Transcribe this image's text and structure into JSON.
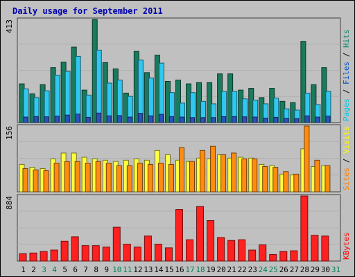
{
  "chart_data": [
    {
      "type": "bar",
      "title": "Daily usage for September 2011",
      "ymax_label": "413",
      "ylim": [
        0,
        413
      ],
      "legend_right": [
        "Pages",
        "Files",
        "Hits"
      ],
      "legend_colors": [
        "#00c8e0",
        "#0050c8",
        "#00806a"
      ],
      "categories": [
        "1",
        "2",
        "3",
        "4",
        "5",
        "6",
        "7",
        "8",
        "9",
        "10",
        "11",
        "12",
        "13",
        "14",
        "15",
        "16",
        "17",
        "18",
        "19",
        "20",
        "21",
        "22",
        "23",
        "24",
        "25",
        "26",
        "27",
        "28",
        "29",
        "30",
        "31"
      ],
      "weekend_days": [
        "3",
        "4",
        "10",
        "11",
        "17",
        "18",
        "24",
        "25",
        "31"
      ],
      "series": [
        {
          "name": "Hits",
          "color": "#1a7a5e",
          "values": [
            155,
            115,
            152,
            220,
            242,
            302,
            130,
            413,
            240,
            215,
            118,
            285,
            200,
            270,
            165,
            170,
            155,
            160,
            160,
            195,
            195,
            130,
            137,
            100,
            137,
            85,
            80,
            325,
            152,
            220,
            0
          ]
        },
        {
          "name": "Files",
          "color": "#30c8f0",
          "values": [
            135,
            100,
            127,
            190,
            205,
            265,
            110,
            290,
            158,
            170,
            105,
            250,
            178,
            238,
            120,
            78,
            120,
            85,
            75,
            125,
            125,
            95,
            90,
            75,
            98,
            55,
            50,
            118,
            72,
            125,
            0
          ]
        },
        {
          "name": "Pages",
          "color": "#2a52be",
          "values": [
            22,
            24,
            23,
            26,
            30,
            34,
            21,
            38,
            27,
            28,
            22,
            37,
            27,
            33,
            24,
            22,
            20,
            20,
            20,
            24,
            24,
            23,
            22,
            18,
            21,
            17,
            16,
            27,
            22,
            26,
            0
          ]
        }
      ]
    },
    {
      "type": "bar",
      "ymax_label": "156",
      "ylim": [
        0,
        156
      ],
      "legend_right": [
        "Sites",
        "Visits"
      ],
      "legend_colors": [
        "#ff8000",
        "#ffff00"
      ],
      "categories": [
        "1",
        "2",
        "3",
        "4",
        "5",
        "6",
        "7",
        "8",
        "9",
        "10",
        "11",
        "12",
        "13",
        "14",
        "15",
        "16",
        "17",
        "18",
        "19",
        "20",
        "21",
        "22",
        "23",
        "24",
        "25",
        "26",
        "27",
        "28",
        "29",
        "30",
        "31"
      ],
      "series": [
        {
          "name": "Visits",
          "color": "#ffff40",
          "values": [
            65,
            58,
            55,
            78,
            92,
            92,
            82,
            78,
            75,
            72,
            75,
            78,
            75,
            98,
            88,
            75,
            72,
            80,
            78,
            88,
            80,
            82,
            80,
            65,
            62,
            42,
            40,
            102,
            60,
            62,
            0
          ]
        },
        {
          "name": "Sites",
          "color": "#ff8c10",
          "values": [
            55,
            52,
            50,
            68,
            72,
            72,
            68,
            72,
            68,
            62,
            62,
            68,
            65,
            68,
            65,
            105,
            72,
            98,
            108,
            88,
            92,
            78,
            78,
            60,
            58,
            48,
            42,
            156,
            75,
            62,
            0
          ]
        }
      ]
    },
    {
      "type": "bar",
      "ymax_label": "884",
      "ylim": [
        0,
        884
      ],
      "legend_right": [
        "KBytes"
      ],
      "legend_colors": [
        "#ff0000"
      ],
      "categories": [
        "1",
        "2",
        "3",
        "4",
        "5",
        "6",
        "7",
        "8",
        "9",
        "10",
        "11",
        "12",
        "13",
        "14",
        "15",
        "16",
        "17",
        "18",
        "19",
        "20",
        "21",
        "22",
        "23",
        "24",
        "25",
        "26",
        "27",
        "28",
        "29",
        "30",
        "31"
      ],
      "series": [
        {
          "name": "KBytes",
          "color": "#ff2020",
          "values": [
            100,
            110,
            130,
            150,
            270,
            330,
            210,
            210,
            190,
            460,
            230,
            190,
            340,
            230,
            180,
            700,
            290,
            740,
            550,
            320,
            280,
            290,
            150,
            220,
            90,
            130,
            140,
            884,
            350,
            340,
            0
          ]
        }
      ]
    }
  ]
}
